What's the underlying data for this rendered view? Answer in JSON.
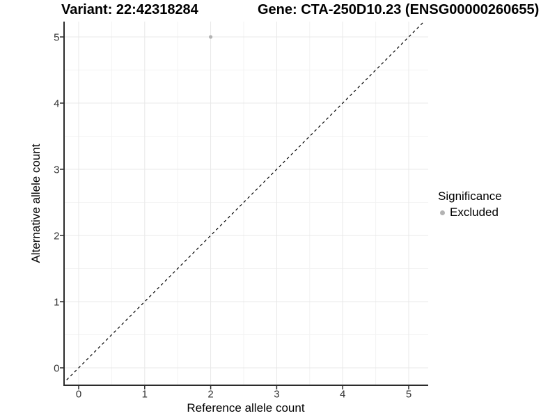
{
  "header": {
    "variant_title": "Variant: 22:42318284",
    "gene_title": "Gene: CTA-250D10.23 (ENSG00000260655)"
  },
  "chart_data": {
    "type": "scatter",
    "xlabel": "Reference allele count",
    "ylabel": "Alternative allele count",
    "x_ticks": [
      0,
      1,
      2,
      3,
      4,
      5
    ],
    "y_ticks": [
      0,
      1,
      2,
      3,
      4,
      5
    ],
    "xlim": [
      -0.25,
      5.3
    ],
    "ylim": [
      -0.27,
      5.23
    ],
    "grid": {
      "major": true,
      "minor": true
    },
    "reference_line": {
      "type": "identity",
      "slope": 1,
      "intercept": 0,
      "style": "dashed",
      "color": "#000000"
    },
    "series": [
      {
        "name": "Excluded",
        "color": "#b3b3b3",
        "points": [
          {
            "x": 2,
            "y": 5
          }
        ]
      }
    ],
    "legend": {
      "title": "Significance",
      "position": "right",
      "items": [
        {
          "label": "Excluded",
          "color": "#b3b3b3"
        }
      ]
    }
  },
  "colors": {
    "background": "#ffffff",
    "grid_major": "#e8e8e8",
    "grid_minor": "#f3f3f3",
    "axis_line": "#2b2b2b",
    "tick_label": "#333333",
    "text": "#000000"
  }
}
